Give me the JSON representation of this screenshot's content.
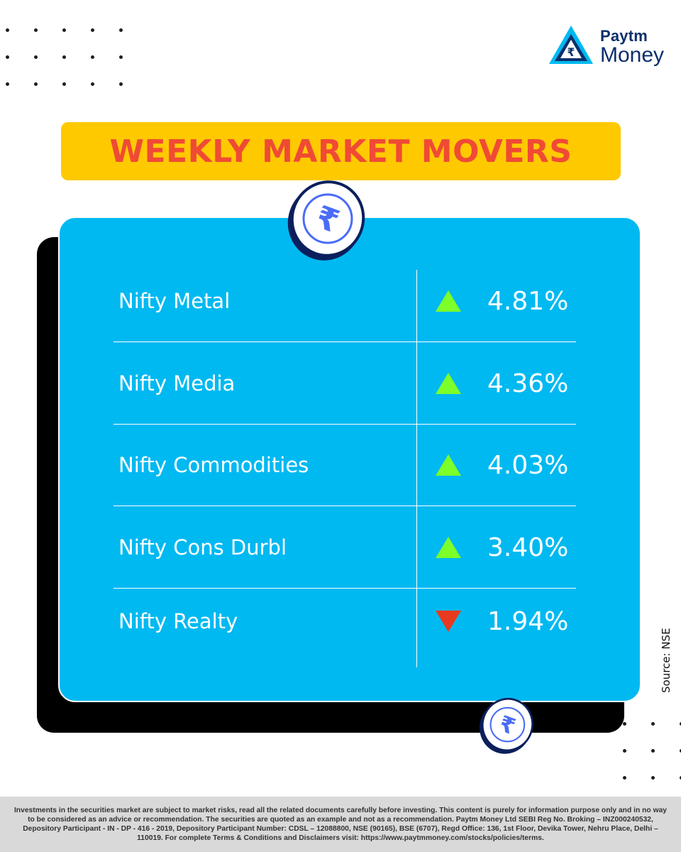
{
  "brand": {
    "name": "Paytm",
    "product": "Money"
  },
  "title": "WEEKLY MARKET MOVERS",
  "colors": {
    "up": "#7dff2a",
    "down": "#e83a1f",
    "card": "#00b9f1",
    "title_bg": "#ffc900",
    "title_text": "#f04a35"
  },
  "rows": [
    {
      "name": "Nifty Metal",
      "direction": "up",
      "value": "4.81%"
    },
    {
      "name": "Nifty Media",
      "direction": "up",
      "value": "4.36%"
    },
    {
      "name": "Nifty Commodities",
      "direction": "up",
      "value": "4.03%"
    },
    {
      "name": "Nifty Cons Durbl",
      "direction": "up",
      "value": "3.40%"
    },
    {
      "name": "Nifty Realty",
      "direction": "down",
      "value": "1.94%"
    }
  ],
  "source": "Source: NSE",
  "disclaimer": "Investments in the securities market are subject to market risks, read all the related documents carefully before investing. This content is purely for information purpose only and in no way to be considered as an advice or recommendation. The securities are quoted as an example and not as a recommendation. Paytm Money Ltd SEBI Reg No. Broking – INZ000240532, Depository Participant - IN - DP - 416 - 2019, Depository Participant Number: CDSL – 12088800, NSE (90165), BSE (6707), Regd Office: 136, 1st Floor, Devika Tower, Nehru Place, Delhi – 110019. For complete Terms & Conditions and Disclaimers visit: https://www.paytmmoney.com/stocks/policies/terms."
}
